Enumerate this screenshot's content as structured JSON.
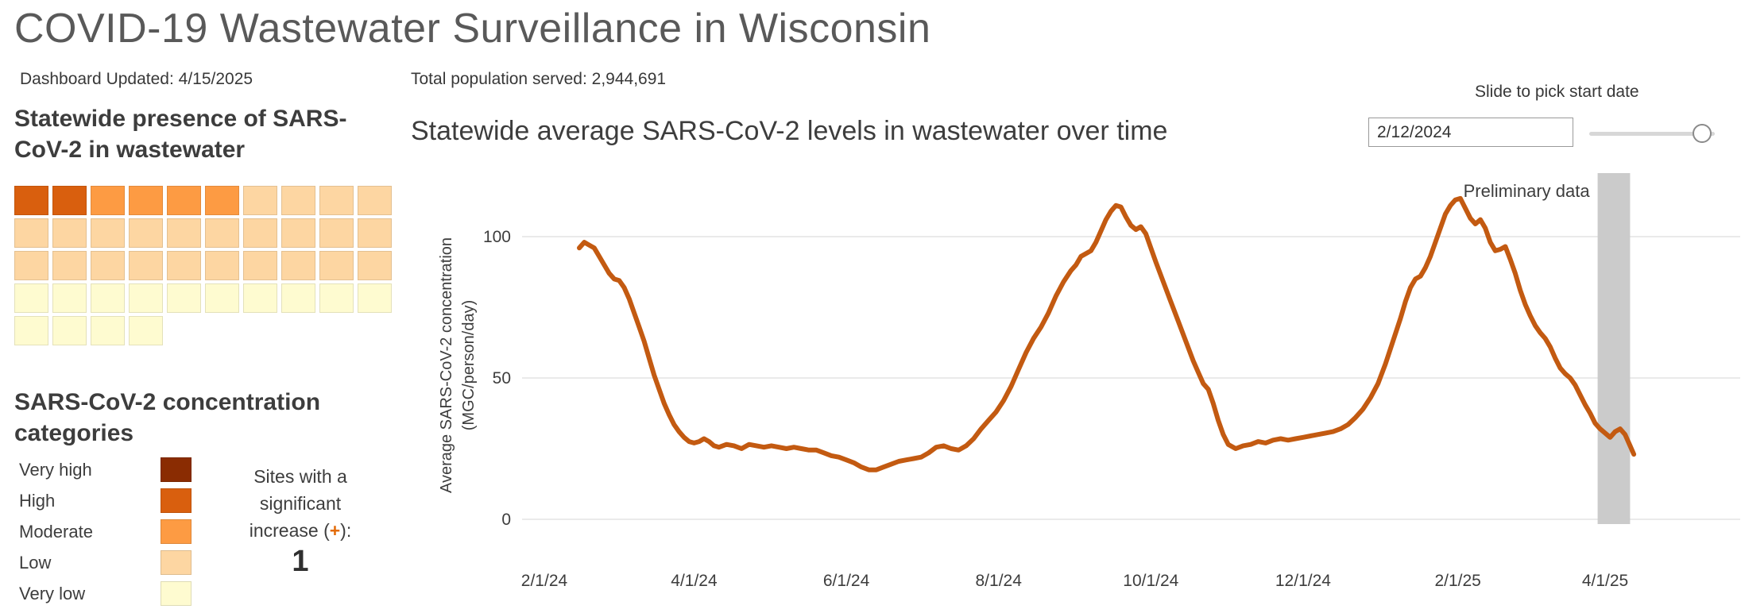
{
  "page": {
    "title": "COVID-19 Wastewater Surveillance in Wisconsin",
    "updated_label": "Dashboard Updated: 4/15/2025",
    "population_label": "Total population served: 2,944,691"
  },
  "controls": {
    "slider_label": "Slide to pick start date",
    "start_date_value": "2/12/2024"
  },
  "sidebar": {
    "presence_title": "Statewide presence of SARS-CoV-2 in wastewater",
    "categories_title": "SARS-CoV-2 concentration categories",
    "waffle": {
      "colors": {
        "very_high": "#8a2c02",
        "high": "#d95f0e",
        "moderate": "#fd9b43",
        "low": "#fdd6a2",
        "very_low": "#fefbd0"
      },
      "rows": [
        [
          "high",
          "high",
          "moderate",
          "moderate",
          "moderate",
          "moderate",
          "low",
          "low",
          "low",
          "low"
        ],
        [
          "low",
          "low",
          "low",
          "low",
          "low",
          "low",
          "low",
          "low",
          "low",
          "low"
        ],
        [
          "low",
          "low",
          "low",
          "low",
          "low",
          "low",
          "low",
          "low",
          "low",
          "low"
        ],
        [
          "very_low",
          "very_low",
          "very_low",
          "very_low",
          "very_low",
          "very_low",
          "very_low",
          "very_low",
          "very_low",
          "very_low"
        ],
        [
          "very_low",
          "very_low",
          "very_low",
          "very_low"
        ]
      ]
    },
    "legend": [
      {
        "label": "Very high",
        "key": "very_high"
      },
      {
        "label": "High",
        "key": "high"
      },
      {
        "label": "Moderate",
        "key": "moderate"
      },
      {
        "label": "Low",
        "key": "low"
      },
      {
        "label": "Very low",
        "key": "very_low"
      }
    ],
    "increase_note": {
      "line1": "Sites with a",
      "line2": "significant",
      "line3_prefix": "increase (",
      "plus": "+",
      "line3_suffix": "):",
      "count": "1"
    }
  },
  "chart_data": {
    "type": "line",
    "title": "Statewide average SARS-CoV-2 levels in wastewater over time",
    "ylabel_line1": "Average SARS-CoV-2 concentration",
    "ylabel_line2": "(MGC/person/day)",
    "ylim": [
      0,
      120
    ],
    "yticks": [
      0,
      50,
      100
    ],
    "grid": "horizontal",
    "x_epoch": "days since 2/1/2024",
    "xticks": [
      {
        "day": 0,
        "label": "2/1/24"
      },
      {
        "day": 60,
        "label": "4/1/24"
      },
      {
        "day": 121,
        "label": "6/1/24"
      },
      {
        "day": 182,
        "label": "8/1/24"
      },
      {
        "day": 243,
        "label": "10/1/24"
      },
      {
        "day": 304,
        "label": "12/1/24"
      },
      {
        "day": 366,
        "label": "2/1/25"
      },
      {
        "day": 425,
        "label": "4/1/25"
      }
    ],
    "preliminary": {
      "label": "Preliminary data",
      "band_start_day": 422,
      "band_end_day": 435
    },
    "series": [
      {
        "name": "Statewide average SARS-CoV-2 concentration",
        "color": "#c35a11",
        "points": [
          [
            14,
            96
          ],
          [
            16,
            98
          ],
          [
            18,
            97
          ],
          [
            20,
            96
          ],
          [
            22,
            93
          ],
          [
            24,
            90
          ],
          [
            26,
            87
          ],
          [
            28,
            85
          ],
          [
            30,
            84.5
          ],
          [
            32,
            82
          ],
          [
            34,
            78
          ],
          [
            36,
            73
          ],
          [
            38,
            68
          ],
          [
            40,
            63
          ],
          [
            42,
            57
          ],
          [
            44,
            51
          ],
          [
            46,
            46
          ],
          [
            48,
            41
          ],
          [
            50,
            37
          ],
          [
            52,
            33.5
          ],
          [
            54,
            31
          ],
          [
            56,
            29
          ],
          [
            58,
            27.5
          ],
          [
            60,
            27
          ],
          [
            62,
            27.5
          ],
          [
            64,
            28.5
          ],
          [
            66,
            27.5
          ],
          [
            68,
            26
          ],
          [
            70,
            25.5
          ],
          [
            73,
            26.5
          ],
          [
            76,
            26
          ],
          [
            79,
            25
          ],
          [
            82,
            26.5
          ],
          [
            85,
            26
          ],
          [
            88,
            25.5
          ],
          [
            91,
            26
          ],
          [
            94,
            25.5
          ],
          [
            97,
            25
          ],
          [
            100,
            25.5
          ],
          [
            103,
            25
          ],
          [
            106,
            24.5
          ],
          [
            109,
            24.5
          ],
          [
            112,
            23.5
          ],
          [
            115,
            22.5
          ],
          [
            118,
            22
          ],
          [
            121,
            21
          ],
          [
            124,
            20
          ],
          [
            127,
            18.5
          ],
          [
            130,
            17.5
          ],
          [
            133,
            17.5
          ],
          [
            136,
            18.5
          ],
          [
            139,
            19.5
          ],
          [
            142,
            20.5
          ],
          [
            145,
            21
          ],
          [
            148,
            21.5
          ],
          [
            151,
            22
          ],
          [
            154,
            23.5
          ],
          [
            157,
            25.5
          ],
          [
            160,
            26
          ],
          [
            163,
            25
          ],
          [
            166,
            24.5
          ],
          [
            169,
            26
          ],
          [
            172,
            28.5
          ],
          [
            175,
            32
          ],
          [
            178,
            35
          ],
          [
            181,
            38
          ],
          [
            184,
            42
          ],
          [
            187,
            47
          ],
          [
            190,
            53
          ],
          [
            193,
            59
          ],
          [
            196,
            64
          ],
          [
            199,
            68
          ],
          [
            202,
            73
          ],
          [
            205,
            79
          ],
          [
            208,
            84
          ],
          [
            211,
            88
          ],
          [
            213,
            90
          ],
          [
            215,
            93
          ],
          [
            217,
            94
          ],
          [
            219,
            95
          ],
          [
            221,
            98
          ],
          [
            223,
            102
          ],
          [
            225,
            106
          ],
          [
            227,
            109
          ],
          [
            229,
            111
          ],
          [
            231,
            110.5
          ],
          [
            233,
            107
          ],
          [
            235,
            104
          ],
          [
            237,
            102.5
          ],
          [
            239,
            103.5
          ],
          [
            241,
            101
          ],
          [
            243,
            96
          ],
          [
            245,
            91
          ],
          [
            248,
            84
          ],
          [
            251,
            77
          ],
          [
            254,
            70
          ],
          [
            257,
            63
          ],
          [
            260,
            56
          ],
          [
            262,
            52
          ],
          [
            264,
            48
          ],
          [
            266,
            46
          ],
          [
            268,
            41
          ],
          [
            270,
            35
          ],
          [
            272,
            30
          ],
          [
            274,
            26.5
          ],
          [
            277,
            25
          ],
          [
            280,
            26
          ],
          [
            283,
            26.5
          ],
          [
            286,
            27.5
          ],
          [
            289,
            27
          ],
          [
            292,
            28
          ],
          [
            295,
            28.5
          ],
          [
            298,
            28
          ],
          [
            301,
            28.5
          ],
          [
            304,
            29
          ],
          [
            307,
            29.5
          ],
          [
            310,
            30
          ],
          [
            313,
            30.5
          ],
          [
            316,
            31
          ],
          [
            319,
            32
          ],
          [
            322,
            33.5
          ],
          [
            325,
            36
          ],
          [
            328,
            39
          ],
          [
            331,
            43
          ],
          [
            334,
            48
          ],
          [
            337,
            55
          ],
          [
            340,
            63
          ],
          [
            343,
            71
          ],
          [
            345,
            77
          ],
          [
            347,
            82
          ],
          [
            349,
            85
          ],
          [
            351,
            86
          ],
          [
            353,
            89
          ],
          [
            355,
            93
          ],
          [
            357,
            98
          ],
          [
            359,
            103
          ],
          [
            361,
            108
          ],
          [
            363,
            111
          ],
          [
            365,
            113
          ],
          [
            367,
            113.5
          ],
          [
            369,
            110
          ],
          [
            371,
            106.5
          ],
          [
            373,
            104.5
          ],
          [
            375,
            106
          ],
          [
            377,
            103
          ],
          [
            379,
            98
          ],
          [
            381,
            95
          ],
          [
            383,
            95.5
          ],
          [
            385,
            96.5
          ],
          [
            387,
            92
          ],
          [
            389,
            87
          ],
          [
            391,
            81
          ],
          [
            393,
            76
          ],
          [
            395,
            72
          ],
          [
            397,
            68.5
          ],
          [
            399,
            66
          ],
          [
            401,
            64
          ],
          [
            403,
            61
          ],
          [
            405,
            57
          ],
          [
            407,
            53.5
          ],
          [
            409,
            51.5
          ],
          [
            411,
            50
          ],
          [
            413,
            47.5
          ],
          [
            415,
            44
          ],
          [
            417,
            40.5
          ],
          [
            419,
            37.5
          ],
          [
            421,
            34
          ],
          [
            423,
            32
          ],
          [
            425,
            30.5
          ],
          [
            427,
            29
          ],
          [
            429,
            31
          ],
          [
            431,
            32
          ],
          [
            433,
            30
          ],
          [
            435,
            26
          ],
          [
            436.5,
            23
          ]
        ]
      }
    ]
  }
}
